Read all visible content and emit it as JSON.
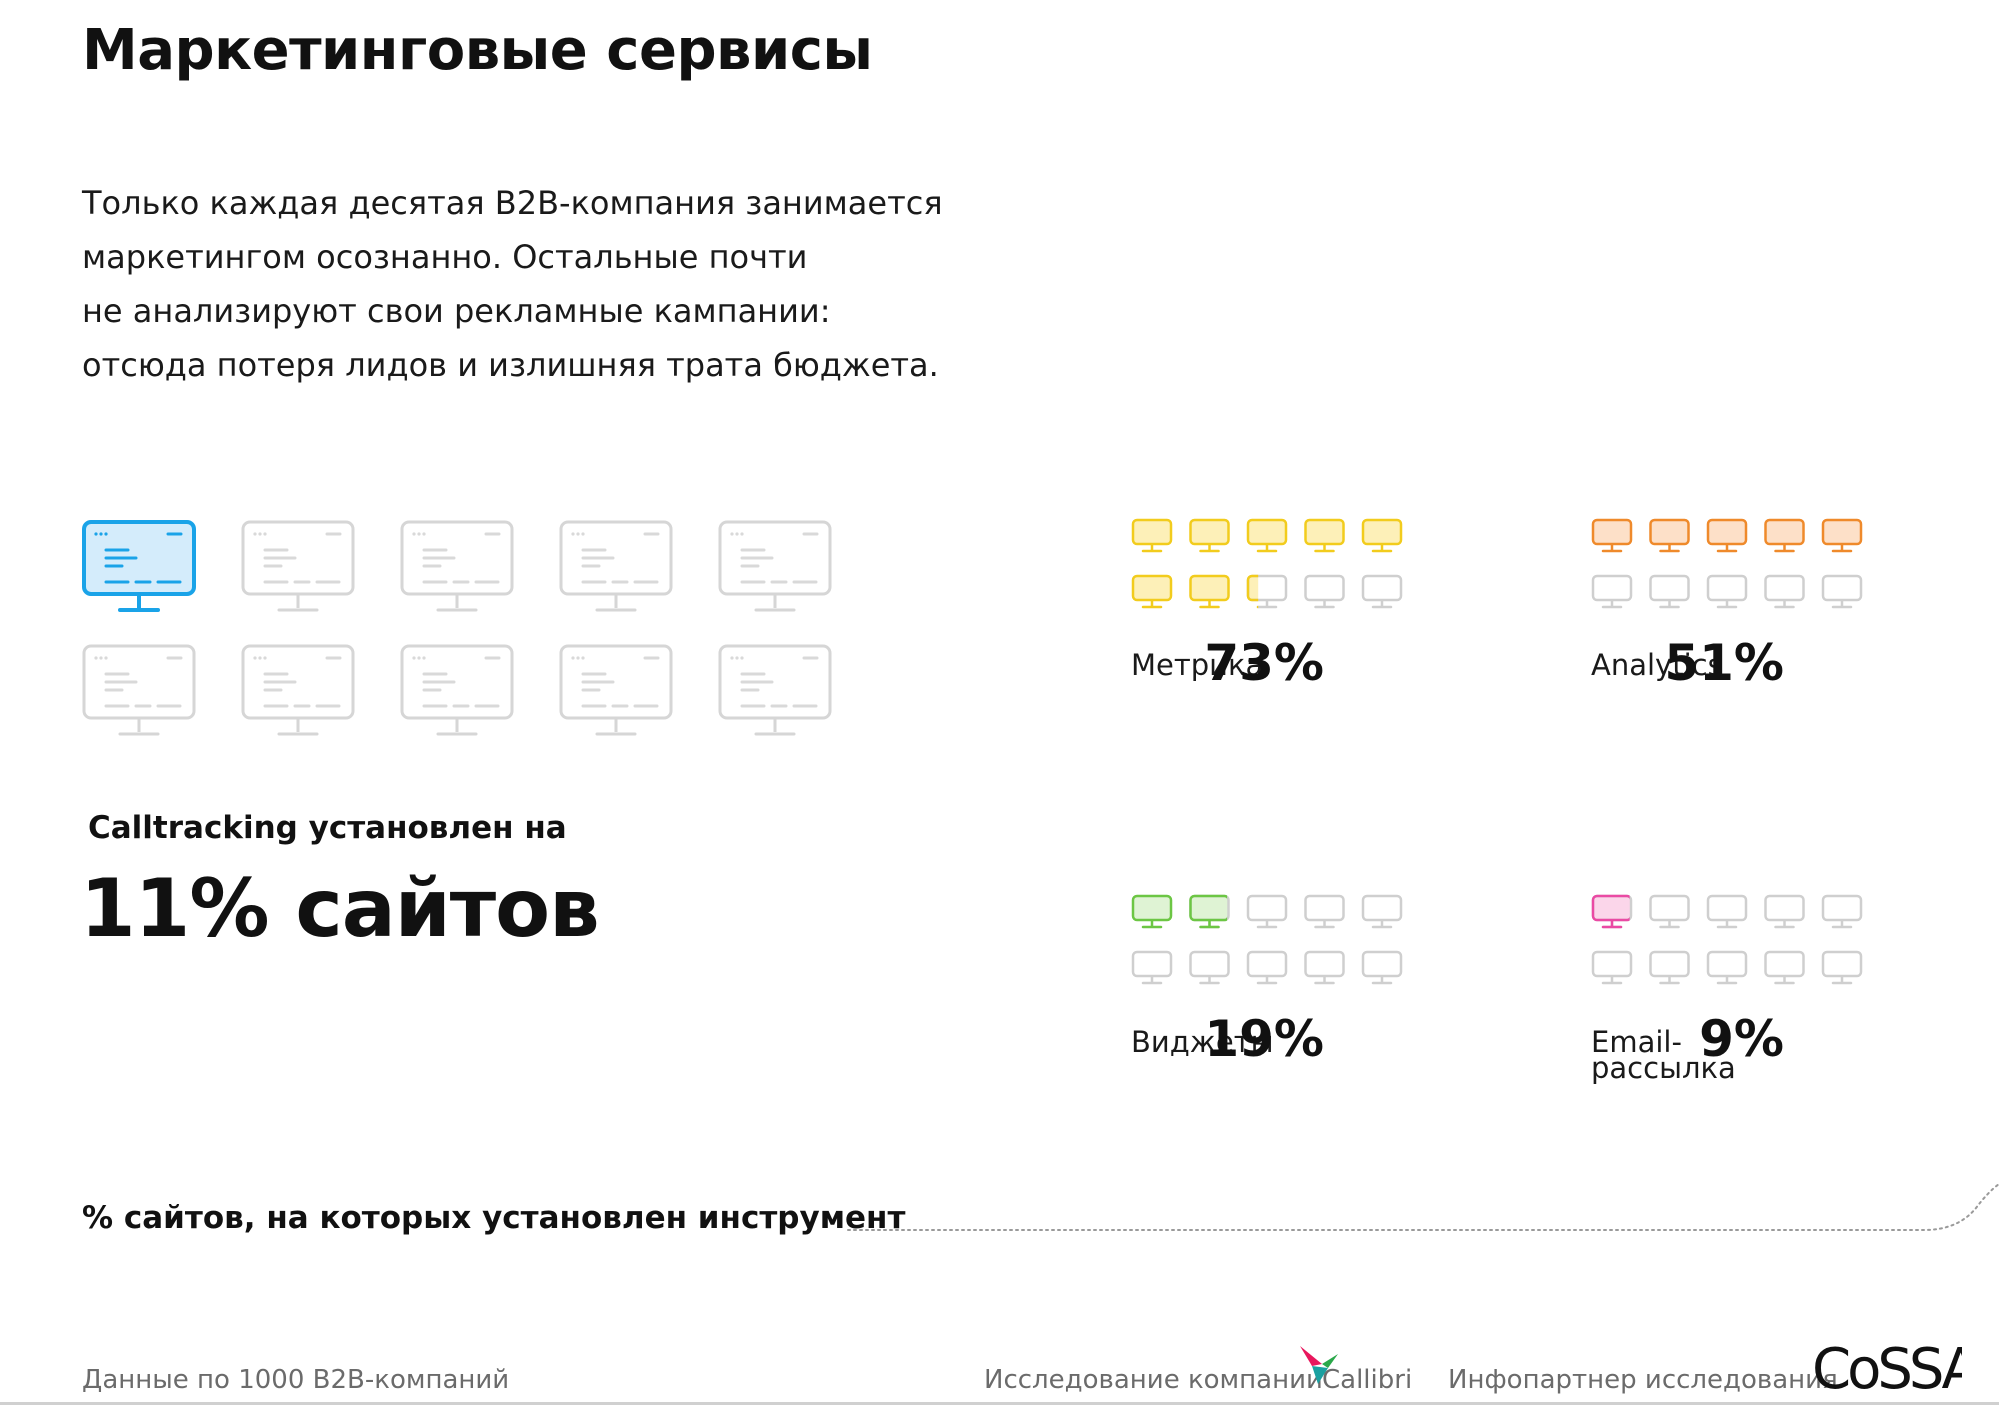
{
  "title": "Маркетинговые сервисы",
  "intro_lines": [
    "Только каждая десятая B2B-компания занимается",
    "маркетингом осознанно. Остальные почти",
    "не анализируют свои рекламные кампании:",
    "отсюда потеря лидов и излишняя трата бюджета."
  ],
  "calltracking": {
    "label": "Calltracking установлен на",
    "value": "11% сайтов",
    "share": 0.11,
    "color": "#1aa3e8"
  },
  "chart_data": {
    "type": "icon-array",
    "metric": "% сайтов, на которых установлен инструмент",
    "units_total": 10,
    "series": [
      {
        "name": "Calltracking",
        "value": 11
      },
      {
        "name": "Метрика",
        "value": 73
      },
      {
        "name": "Analytics",
        "value": 51
      },
      {
        "name": "Виджеты",
        "value": 19
      },
      {
        "name": "Email-рассылка",
        "value": 9
      }
    ]
  },
  "tools": [
    {
      "name_lines": [
        "Метрика"
      ],
      "percent_text": "73%",
      "share": 0.73,
      "color": "#f2cc1d",
      "fill": "#fdf0b8"
    },
    {
      "name_lines": [
        "Analytics"
      ],
      "percent_text": "51%",
      "share": 0.51,
      "color": "#ef8a2b",
      "fill": "#fde0c8"
    },
    {
      "name_lines": [
        "Виджеты"
      ],
      "percent_text": "19%",
      "share": 0.19,
      "color": "#6cc644",
      "fill": "#dff3d4"
    },
    {
      "name_lines": [
        "Email-",
        "рассылка"
      ],
      "percent_text": "9%",
      "share": 0.09,
      "color": "#ea4aa4",
      "fill": "#fbd6ea"
    }
  ],
  "legend_note": "% сайтов, на которых установлен инструмент",
  "footer": {
    "source": "Данные по 1000 B2B-компаний",
    "research_label": "Исследование компании",
    "research_brand": "Callibri",
    "partner_label": "Инфопартнер исследования",
    "partner_brand": "CoSSA"
  }
}
